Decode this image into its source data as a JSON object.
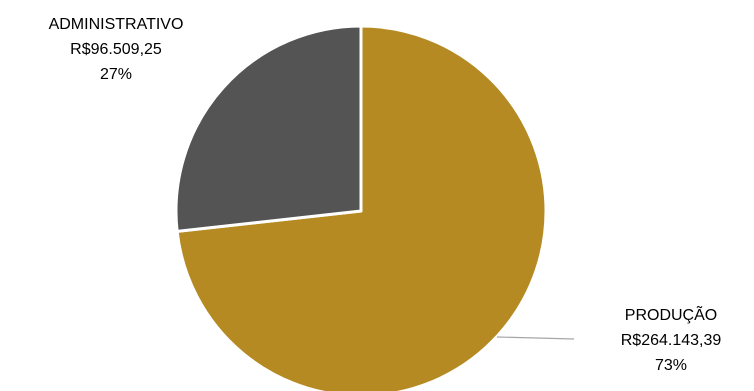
{
  "chart_data": {
    "type": "pie",
    "title": "",
    "legend": "none",
    "slices": [
      {
        "name": "PRODUÇÃO",
        "value": 264143.39,
        "value_label": "R$264.143,39",
        "percent_label": "73%",
        "color": "#B58A22"
      },
      {
        "name": "ADMINISTRATIVO",
        "value": 96509.25,
        "value_label": "R$96.509,25",
        "percent_label": "27%",
        "color": "#545454"
      }
    ]
  }
}
